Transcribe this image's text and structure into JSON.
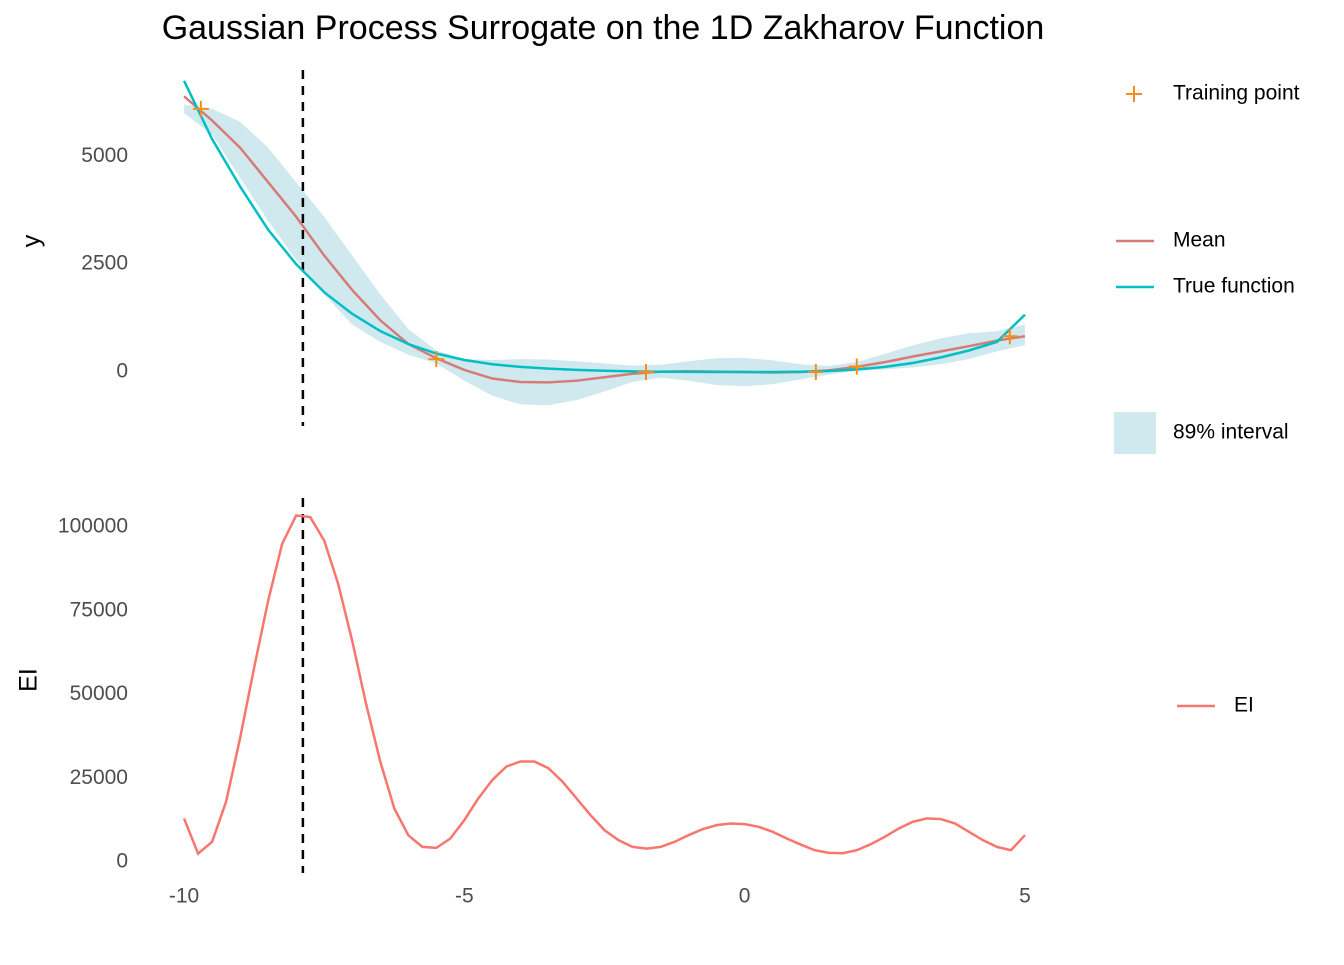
{
  "chart_data": [
    {
      "type": "line",
      "title": "Gaussian Process Surrogate on the 1D Zakharov Function",
      "ylabel": "y",
      "x": [
        -10,
        -9.5,
        -9,
        -8.5,
        -8,
        -7.5,
        -7,
        -6.5,
        -6,
        -5.5,
        -5,
        -4.5,
        -4,
        -3.5,
        -3,
        -2.5,
        -2,
        -1.5,
        -1,
        -0.5,
        0,
        0.5,
        1,
        1.5,
        2,
        2.5,
        3,
        3.5,
        4,
        4.5,
        5
      ],
      "series": [
        {
          "name": "Mean",
          "color": "#d67c76",
          "values": [
            6390,
            5830,
            5200,
            4400,
            3600,
            2700,
            1900,
            1200,
            650,
            320,
            50,
            -150,
            -230,
            -240,
            -200,
            -120,
            -40,
            10,
            20,
            10,
            0,
            -10,
            0,
            40,
            120,
            230,
            360,
            480,
            600,
            730,
            830
          ]
        },
        {
          "name": "True function",
          "color": "#00bfc4",
          "values": [
            6750,
            5400,
            4300,
            3300,
            2500,
            1850,
            1350,
            950,
            650,
            430,
            280,
            180,
            120,
            80,
            50,
            30,
            15,
            8,
            3,
            1,
            0,
            2,
            8,
            25,
            60,
            120,
            210,
            340,
            500,
            700,
            1330
          ]
        }
      ],
      "band": {
        "name": "89% interval",
        "color": "#d0e9ef",
        "lower": [
          6000,
          5500,
          4500,
          3500,
          2600,
          1800,
          1100,
          700,
          400,
          200,
          -200,
          -550,
          -750,
          -770,
          -650,
          -450,
          -230,
          -130,
          -200,
          -300,
          -330,
          -280,
          -170,
          -60,
          30,
          60,
          110,
          180,
          300,
          480,
          620
        ],
        "upper": [
          6200,
          6100,
          5800,
          5200,
          4400,
          3600,
          2700,
          1800,
          1000,
          500,
          300,
          280,
          300,
          290,
          250,
          200,
          150,
          170,
          250,
          320,
          330,
          270,
          180,
          140,
          230,
          420,
          620,
          780,
          900,
          950,
          1100
        ]
      },
      "points": {
        "name": "Training point",
        "color": "#f28e1c",
        "x": [
          -9.7,
          -5.5,
          -1.76,
          1.27,
          2.0,
          4.73
        ],
        "values": [
          6100,
          300,
          0,
          0,
          130,
          830
        ]
      },
      "vline": -7.88,
      "xlim": [
        -10.75,
        5.75
      ],
      "ylim": [
        -1250,
        7000
      ],
      "yticks": [
        0,
        2500,
        5000
      ]
    },
    {
      "type": "line",
      "ylabel": "EI",
      "x": [
        -10,
        -9.75,
        -9.5,
        -9.25,
        -9,
        -8.75,
        -8.5,
        -8.25,
        -8,
        -7.75,
        -7.5,
        -7.25,
        -7,
        -6.75,
        -6.5,
        -6.25,
        -6,
        -5.75,
        -5.5,
        -5.25,
        -5,
        -4.75,
        -4.5,
        -4.25,
        -4,
        -3.75,
        -3.5,
        -3.25,
        -3,
        -2.75,
        -2.5,
        -2.25,
        -2,
        -1.75,
        -1.5,
        -1.25,
        -1,
        -0.75,
        -0.5,
        -0.25,
        0,
        0.25,
        0.5,
        0.75,
        1,
        1.25,
        1.5,
        1.75,
        2,
        2.25,
        2.5,
        2.75,
        3,
        3.25,
        3.5,
        3.75,
        4,
        4.25,
        4.5,
        4.75,
        5
      ],
      "series": [
        {
          "name": "EI",
          "color": "#f8766d",
          "values": [
            13000,
            2500,
            6000,
            18000,
            37000,
            58000,
            78000,
            95000,
            103500,
            103000,
            96000,
            83000,
            66000,
            47000,
            30000,
            16000,
            8000,
            4500,
            4200,
            7000,
            12500,
            19000,
            24500,
            28500,
            30000,
            30000,
            28000,
            24000,
            19000,
            14000,
            9500,
            6500,
            4500,
            4000,
            4500,
            6000,
            8000,
            9800,
            11000,
            11500,
            11300,
            10500,
            9000,
            7000,
            5200,
            3500,
            2700,
            2600,
            3500,
            5300,
            7500,
            10000,
            12000,
            13000,
            12800,
            11500,
            9000,
            6500,
            4500,
            3500,
            8000
          ]
        }
      ],
      "vline": -7.88,
      "xlim": [
        -10.75,
        5.75
      ],
      "ylim": [
        -3300,
        108700
      ],
      "yticks": [
        0,
        25000,
        50000,
        75000,
        100000
      ],
      "xticks": [
        -10,
        -5,
        0,
        5
      ]
    }
  ]
}
